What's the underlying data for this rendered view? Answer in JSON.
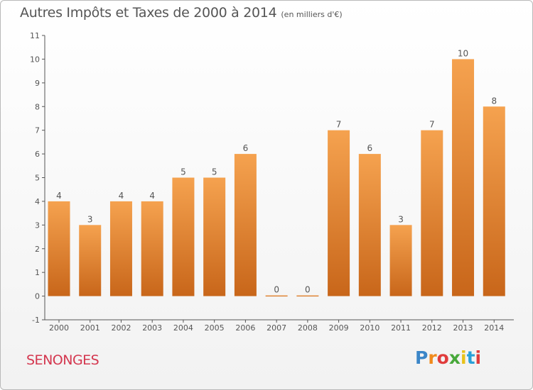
{
  "header": {
    "title": "Autres Impôts et Taxes de 2000 à 2014",
    "subtitle": "(en milliers d'€)"
  },
  "footer": {
    "commune": "SENONGES",
    "brand": "Proxiti",
    "brand_colors": [
      "#3b86c8",
      "#f08a1c",
      "#e03c3c",
      "#47a83a",
      "#e8c21a",
      "#2aa0d8",
      "#e03c3c"
    ]
  },
  "chart_data": {
    "type": "bar",
    "categories": [
      "2000",
      "2001",
      "2002",
      "2003",
      "2004",
      "2005",
      "2006",
      "2007",
      "2008",
      "2009",
      "2010",
      "2011",
      "2012",
      "2013",
      "2014"
    ],
    "values": [
      4,
      3,
      4,
      4,
      5,
      5,
      6,
      0,
      0,
      7,
      6,
      3,
      7,
      10,
      8
    ],
    "data_labels": [
      "4",
      "3",
      "4",
      "4",
      "5",
      "5",
      "6",
      "0",
      "0",
      "7",
      "6",
      "3",
      "7",
      "10",
      "8"
    ],
    "ylim": [
      -1,
      11
    ],
    "yticks": [
      "-1",
      "0",
      "1",
      "2",
      "3",
      "4",
      "5",
      "6",
      "7",
      "8",
      "9",
      "10",
      "11"
    ],
    "grid": false,
    "bar_color": "#f0973e",
    "bar_color_dark": "#c8661a"
  }
}
